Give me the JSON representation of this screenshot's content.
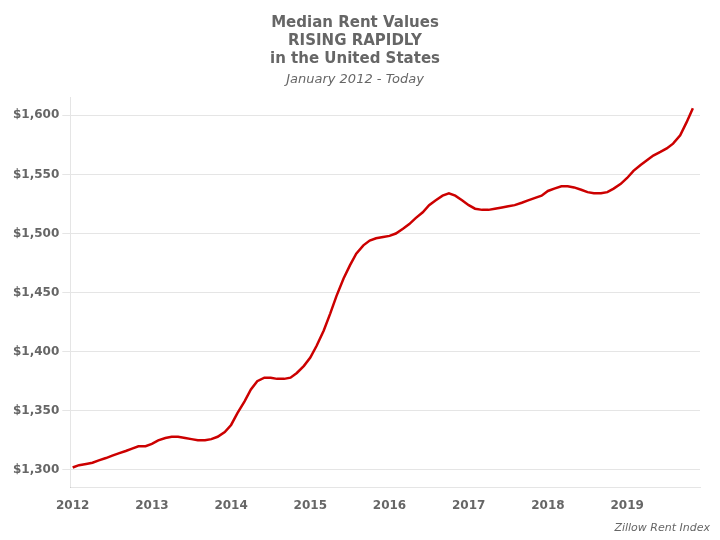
{
  "chart_data": {
    "type": "line",
    "title": [
      "Median Rent Values",
      "RISING RAPIDLY",
      "in the United States"
    ],
    "subtitle": "January 2012 - Today",
    "annotations": [
      "Zillow Rent Index"
    ],
    "x": [
      2012.0,
      2012.08,
      2012.17,
      2012.25,
      2012.33,
      2012.42,
      2012.5,
      2012.58,
      2012.67,
      2012.75,
      2012.83,
      2012.92,
      2013.0,
      2013.08,
      2013.17,
      2013.25,
      2013.33,
      2013.42,
      2013.5,
      2013.58,
      2013.67,
      2013.75,
      2013.83,
      2013.92,
      2014.0,
      2014.08,
      2014.17,
      2014.25,
      2014.33,
      2014.42,
      2014.5,
      2014.58,
      2014.67,
      2014.75,
      2014.83,
      2014.92,
      2015.0,
      2015.08,
      2015.17,
      2015.25,
      2015.33,
      2015.42,
      2015.5,
      2015.58,
      2015.67,
      2015.75,
      2015.83,
      2015.92,
      2016.0,
      2016.08,
      2016.17,
      2016.25,
      2016.33,
      2016.42,
      2016.5,
      2016.58,
      2016.67,
      2016.75,
      2016.83,
      2016.92,
      2017.0,
      2017.08,
      2017.17,
      2017.25,
      2017.33,
      2017.42,
      2017.5,
      2017.58,
      2017.67,
      2017.75,
      2017.83,
      2017.92,
      2018.0,
      2018.08,
      2018.17,
      2018.25,
      2018.33,
      2018.42,
      2018.5,
      2018.58,
      2018.67,
      2018.75,
      2018.83,
      2018.92,
      2019.0,
      2019.08,
      2019.17,
      2019.25,
      2019.33,
      2019.42,
      2019.5,
      2019.58,
      2019.67,
      2019.75,
      2019.83
    ],
    "values": [
      1302,
      1304,
      1305,
      1306,
      1308,
      1310,
      1312,
      1314,
      1316,
      1318,
      1320,
      1320,
      1322,
      1325,
      1327,
      1328,
      1328,
      1327,
      1326,
      1325,
      1325,
      1326,
      1328,
      1332,
      1338,
      1348,
      1358,
      1368,
      1375,
      1378,
      1378,
      1377,
      1377,
      1378,
      1382,
      1388,
      1395,
      1405,
      1418,
      1432,
      1447,
      1462,
      1473,
      1483,
      1490,
      1494,
      1496,
      1497,
      1498,
      1500,
      1504,
      1508,
      1513,
      1518,
      1524,
      1528,
      1532,
      1534,
      1532,
      1528,
      1524,
      1521,
      1520,
      1520,
      1521,
      1522,
      1523,
      1524,
      1526,
      1528,
      1530,
      1532,
      1536,
      1538,
      1540,
      1540,
      1539,
      1537,
      1535,
      1534,
      1534,
      1535,
      1538,
      1542,
      1547,
      1553,
      1558,
      1562,
      1566,
      1569,
      1572,
      1576,
      1583,
      1594,
      1606
    ],
    "color": "#CC0000",
    "xlim": [
      2011.97,
      2019.92
    ],
    "xticks": [
      2012,
      2013,
      2014,
      2015,
      2016,
      2017,
      2018,
      2019
    ],
    "ylim": [
      1285,
      1615
    ],
    "yticks": [
      {
        "value": 1300,
        "label": "$1,300"
      },
      {
        "value": 1350,
        "label": "$1,350"
      },
      {
        "value": 1400,
        "label": "$1,400"
      },
      {
        "value": 1450,
        "label": "$1,450"
      },
      {
        "value": 1500,
        "label": "$1,500"
      },
      {
        "value": 1550,
        "label": "$1,550"
      },
      {
        "value": 1600,
        "label": "$1,600"
      }
    ],
    "grid": true
  }
}
